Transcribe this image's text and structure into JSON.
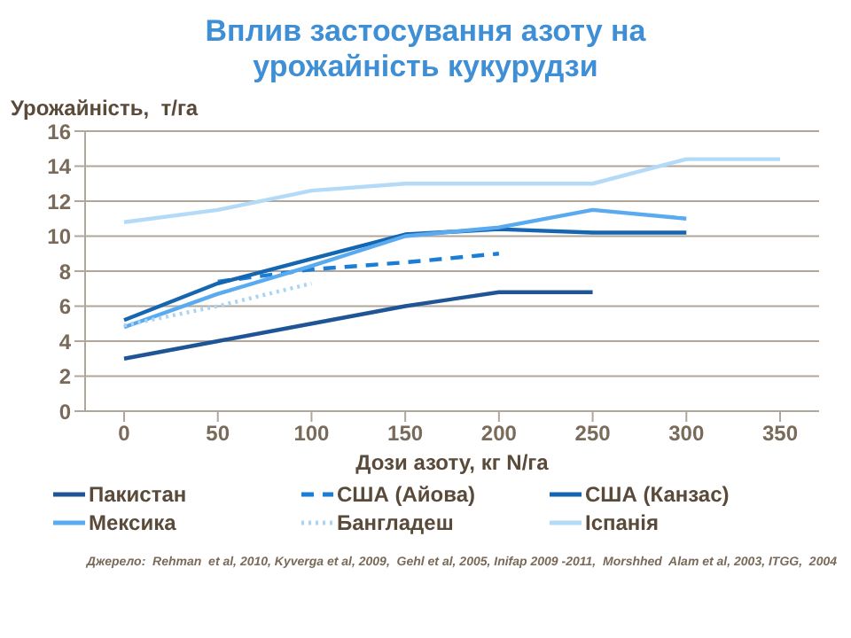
{
  "chart_data": {
    "type": "line",
    "title": "Вплив застосування азоту на урожайність кукурудзи",
    "xlabel": "Дози азоту, кг N/га",
    "ylabel": "Урожайність,  т/га",
    "categories": [
      "0",
      "50",
      "100",
      "150",
      "200",
      "250",
      "300",
      "350"
    ],
    "series": [
      {
        "name": "Пакистан",
        "color": "#1f5596",
        "line_style": "solid",
        "values": [
          3.0,
          4.0,
          5.0,
          6.0,
          6.8,
          6.8,
          null,
          null
        ]
      },
      {
        "name": "США (Айова)",
        "color": "#1a7dd6",
        "line_style": "dashed",
        "values": [
          null,
          7.4,
          8.1,
          8.5,
          9.0,
          null,
          null,
          null
        ]
      },
      {
        "name": "США (Канзас)",
        "color": "#1565b0",
        "line_style": "solid",
        "values": [
          5.2,
          7.3,
          8.7,
          10.1,
          10.4,
          10.2,
          10.2,
          null
        ]
      },
      {
        "name": "Мексика",
        "color": "#5aaaf0",
        "line_style": "solid",
        "values": [
          4.8,
          6.7,
          8.3,
          10.0,
          10.5,
          11.5,
          11.0,
          null
        ]
      },
      {
        "name": "Бангладеш",
        "color": "#a8d4f5",
        "line_style": "dotted",
        "values": [
          4.9,
          6.0,
          7.3,
          null,
          null,
          null,
          null,
          null
        ]
      },
      {
        "name": "Іспанія",
        "color": "#b3dbf7",
        "line_style": "solid",
        "values": [
          10.8,
          11.5,
          12.6,
          13.0,
          13.0,
          13.0,
          14.4,
          14.4
        ]
      }
    ],
    "ylim": [
      0,
      16
    ],
    "yticks": [
      0,
      2,
      4,
      6,
      8,
      10,
      12,
      14,
      16
    ],
    "grid": "y",
    "legend": "bottom",
    "marker": "none",
    "annotations": [
      "Джерело:  Rehman  et al, 2010, Kyverga et al, 2009,  Gehl et al, 2005, Inifap 2009 -2011,  Morshhed  Alam et al, 2003, ITGG,  2004"
    ]
  }
}
